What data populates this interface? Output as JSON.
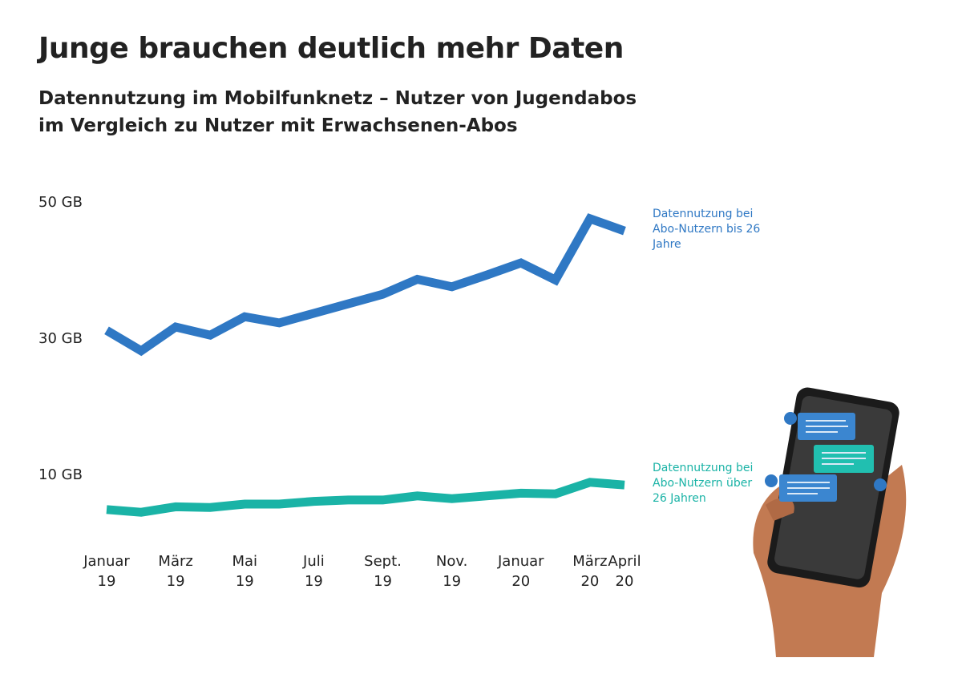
{
  "chart_data": {
    "type": "line",
    "title": "Junge brauchen deutlich mehr Daten",
    "subtitle": "Datennutzung im Mobilfunknetz – Nutzer von Jugendabos im Vergleich zu Nutzer mit Erwachsenen-Abos",
    "categories": [
      "Januar\n19",
      null,
      "März\n19",
      null,
      "Mai\n19",
      null,
      "Juli\n19",
      null,
      "Sept.\n19",
      null,
      "Nov.\n19",
      null,
      "Januar\n20",
      null,
      "März\n20",
      "April\n20"
    ],
    "series": [
      {
        "name": "Datennutzung bei Abo-Nutzern bis 26 Jahre",
        "color": "#2f78c4",
        "values": [
          31.5,
          28.5,
          32,
          30.8,
          33.5,
          32.6,
          34,
          35.4,
          36.8,
          39,
          37.9,
          39.6,
          41.4,
          38.9,
          47.9,
          46.1
        ]
      },
      {
        "name": "Datennutzung bei Abo-Nutzern über 26 Jahren",
        "color": "#1ab3a6",
        "values": [
          5.2,
          4.8,
          5.6,
          5.5,
          6.0,
          6.0,
          6.4,
          6.6,
          6.6,
          7.2,
          6.8,
          7.2,
          7.6,
          7.5,
          9.2,
          8.8
        ]
      }
    ],
    "ylim": [
      0,
      52
    ],
    "yticks": [
      {
        "value": 10,
        "label": "10 GB"
      },
      {
        "value": 30,
        "label": "30 GB"
      },
      {
        "value": 50,
        "label": "50 GB"
      }
    ],
    "grid": false
  }
}
